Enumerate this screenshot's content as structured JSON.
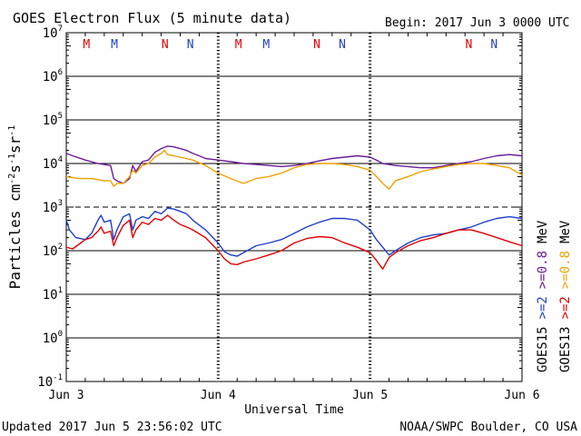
{
  "header": {
    "title": "GOES Electron Flux (5 minute data)",
    "begin": "Begin: 2017 Jun 3 0000 UTC"
  },
  "footer": {
    "updated": "Updated 2017 Jun  5 23:56:02 UTC",
    "credit": "NOAA/SWPC Boulder, CO USA"
  },
  "chart_data": {
    "type": "line",
    "title": "GOES Electron Flux (5 minute data)",
    "xlabel": "Universal Time",
    "ylabel": "Particles cm-2s-1sr-1",
    "ylabel_parts": {
      "main": "Particles cm",
      "e1": "-2",
      "s": "s",
      "e2": "-1",
      "sr": "sr",
      "e3": "-1"
    },
    "y_scale": "log",
    "ylim": [
      0.1,
      10000000
    ],
    "y_ticks": [
      {
        "base": "10",
        "exp": "7",
        "value": 10000000
      },
      {
        "base": "10",
        "exp": "6",
        "value": 1000000
      },
      {
        "base": "10",
        "exp": "5",
        "value": 100000
      },
      {
        "base": "10",
        "exp": "4",
        "value": 10000
      },
      {
        "base": "10",
        "exp": "3",
        "value": 1000
      },
      {
        "base": "10",
        "exp": "2",
        "value": 100
      },
      {
        "base": "10",
        "exp": "1",
        "value": 10
      },
      {
        "base": "10",
        "exp": "0",
        "value": 1
      },
      {
        "base": "10",
        "exp": "-1",
        "value": 0.1
      }
    ],
    "xlim_hours": [
      0,
      72
    ],
    "x_ticks": [
      {
        "label": "Jun 3",
        "hour": 0
      },
      {
        "label": "Jun 4",
        "hour": 24
      },
      {
        "label": "Jun 5",
        "hour": 48
      },
      {
        "label": "Jun 6",
        "hour": 72
      }
    ],
    "threshold_dashed": 1000,
    "markers": [
      {
        "label": "M",
        "hour": 3.2,
        "color": "#e00000"
      },
      {
        "label": "M",
        "hour": 7.6,
        "color": "#1f3fcc"
      },
      {
        "label": "N",
        "hour": 15.6,
        "color": "#e00000"
      },
      {
        "label": "N",
        "hour": 19.6,
        "color": "#1f3fcc"
      },
      {
        "label": "M",
        "hour": 27.2,
        "color": "#e00000"
      },
      {
        "label": "M",
        "hour": 31.6,
        "color": "#1f3fcc"
      },
      {
        "label": "N",
        "hour": 39.6,
        "color": "#e00000"
      },
      {
        "label": "N",
        "hour": 43.6,
        "color": "#1f3fcc"
      },
      {
        "label": "N",
        "hour": 63.6,
        "color": "#e00000"
      },
      {
        "label": "N",
        "hour": 67.6,
        "color": "#1f3fcc"
      }
    ],
    "side_legend": [
      {
        "text": "GOES15",
        "color": "#000000",
        "column": 0,
        "row": 0
      },
      {
        "text": ">=2",
        "color": "#1f3fcc",
        "column": 0,
        "row": 1
      },
      {
        "text": ">=0.8",
        "color": "#6a1b9a",
        "column": 0,
        "row": 2
      },
      {
        "text": "MeV",
        "color": "#000000",
        "column": 0,
        "row": 3
      },
      {
        "text": "GOES13",
        "color": "#000000",
        "column": 1,
        "row": 0
      },
      {
        "text": ">=2",
        "color": "#e00000",
        "column": 1,
        "row": 1
      },
      {
        "text": ">=0.8",
        "color": "#f0a000",
        "column": 1,
        "row": 2
      },
      {
        "text": "MeV",
        "color": "#000000",
        "column": 1,
        "row": 3
      }
    ],
    "series": [
      {
        "name": "GOES15 >=0.8 MeV",
        "color": "#6a1b9a",
        "x": [
          0,
          1,
          3,
          5,
          7,
          7.5,
          8,
          9,
          10,
          10.5,
          11,
          12,
          13,
          14,
          15,
          16,
          17,
          18,
          19,
          20,
          21,
          22,
          24,
          26,
          28,
          30,
          32,
          34,
          36,
          38,
          40,
          42,
          44,
          46,
          48,
          49,
          50,
          52,
          54,
          56,
          58,
          60,
          62,
          64,
          66,
          68,
          70,
          72
        ],
        "y": [
          17000,
          15000,
          12000,
          10000,
          9000,
          4500,
          4000,
          3500,
          4500,
          9000,
          6500,
          11000,
          12000,
          18000,
          22000,
          25000,
          24000,
          22000,
          20000,
          17000,
          15000,
          13000,
          12000,
          11000,
          10000,
          9500,
          9000,
          8500,
          9000,
          10000,
          11500,
          13000,
          14000,
          15000,
          14000,
          12000,
          10000,
          9000,
          8500,
          8000,
          8000,
          9000,
          10000,
          11000,
          13000,
          15000,
          16000,
          15000
        ]
      },
      {
        "name": "GOES13 >=0.8 MeV",
        "color": "#f0a000",
        "x": [
          0,
          2,
          4,
          6,
          7,
          7.5,
          8,
          9,
          10,
          10.5,
          11,
          12,
          13,
          14,
          15,
          15.5,
          16,
          17,
          18,
          20,
          22,
          24,
          26,
          28,
          30,
          32,
          34,
          36,
          38,
          40,
          42,
          44,
          46,
          48,
          49,
          50,
          51,
          52,
          54,
          56,
          58,
          60,
          62,
          64,
          66,
          68,
          70,
          72
        ],
        "y": [
          5000,
          4500,
          4500,
          4000,
          4000,
          3000,
          3500,
          3500,
          5000,
          7000,
          6000,
          9000,
          10000,
          14000,
          17000,
          20000,
          16000,
          15000,
          14000,
          12000,
          9000,
          6000,
          4500,
          3500,
          4500,
          5000,
          6000,
          8000,
          9500,
          10000,
          10000,
          9500,
          8500,
          7000,
          5000,
          3500,
          2600,
          4000,
          5000,
          6500,
          7500,
          8500,
          9500,
          10000,
          10000,
          9000,
          8000,
          5500
        ]
      },
      {
        "name": "GOES15 >=2 MeV",
        "color": "#1f3fcc",
        "x": [
          0,
          0.5,
          1.5,
          3,
          4,
          5,
          5.5,
          6,
          7,
          7.5,
          8,
          9,
          10,
          10.5,
          11,
          12,
          13,
          14,
          15,
          16,
          17,
          18,
          19,
          20,
          22,
          24,
          25,
          26,
          27,
          28,
          30,
          32,
          34,
          36,
          38,
          40,
          42,
          44,
          46,
          48,
          49,
          50,
          51,
          52,
          54,
          56,
          58,
          60,
          62,
          64,
          66,
          68,
          70,
          72
        ],
        "y": [
          500,
          300,
          200,
          180,
          250,
          500,
          650,
          450,
          500,
          180,
          300,
          600,
          700,
          300,
          500,
          600,
          550,
          800,
          700,
          950,
          900,
          800,
          700,
          500,
          300,
          150,
          95,
          80,
          75,
          90,
          130,
          150,
          180,
          250,
          350,
          450,
          550,
          550,
          500,
          300,
          180,
          120,
          80,
          100,
          150,
          200,
          230,
          250,
          300,
          350,
          450,
          550,
          600,
          550
        ]
      },
      {
        "name": "GOES13 >=2 MeV",
        "color": "#e00000",
        "x": [
          0,
          1,
          2,
          3,
          4,
          5,
          5.5,
          6,
          7,
          7.5,
          8,
          9,
          10,
          10.5,
          11,
          12,
          13,
          14,
          15,
          16,
          17,
          18,
          19,
          20,
          22,
          24,
          25,
          26,
          27,
          28,
          30,
          32,
          34,
          36,
          38,
          40,
          42,
          44,
          46,
          48,
          49,
          50,
          51,
          52,
          54,
          56,
          58,
          60,
          62,
          64,
          66,
          68,
          70,
          72
        ],
        "y": [
          120,
          110,
          140,
          180,
          200,
          280,
          350,
          250,
          280,
          130,
          200,
          380,
          500,
          200,
          300,
          450,
          400,
          550,
          500,
          650,
          500,
          400,
          350,
          300,
          200,
          100,
          65,
          50,
          48,
          55,
          65,
          80,
          100,
          150,
          190,
          210,
          200,
          150,
          120,
          90,
          60,
          38,
          70,
          90,
          130,
          170,
          200,
          250,
          300,
          300,
          250,
          200,
          160,
          130
        ]
      }
    ]
  }
}
